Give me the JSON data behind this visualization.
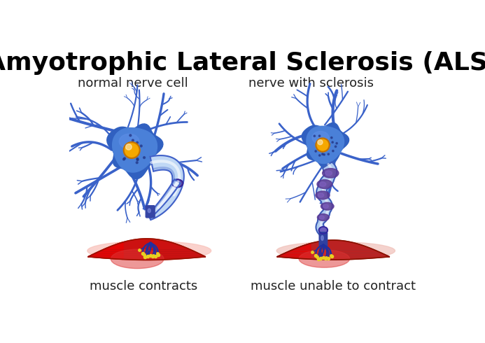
{
  "title": "Amyotrophic Lateral Sclerosis (ALS)",
  "title_fontsize": 26,
  "title_fontweight": "bold",
  "label_left_top": "normal nerve cell",
  "label_right_top": "nerve with sclerosis",
  "label_left_bottom": "muscle contracts",
  "label_right_bottom": "muscle unable to contract",
  "label_fontsize": 13,
  "label_color": "#222222",
  "bg_color": "#ffffff",
  "neuron_body_color": "#3a62c9",
  "neuron_body_outer": "#4a7de0",
  "nucleus_color_normal": "#f5a800",
  "nucleus_color_sclerosis": "#f0b030",
  "axon_blue_light": "#b8d0f0",
  "axon_blue_dark": "#3a5ab8",
  "axon_blue_mid": "#7aabdc",
  "sclerosis_purple": "#6040a0",
  "sclerosis_light": "#8878c8",
  "muscle_red_bright": "#dd1111",
  "muscle_red_dark": "#aa1111",
  "muscle_pink": "#f5c8c0",
  "muscle_stripe": "#cc3333",
  "nerve_terminal_blue": "#3050a0",
  "nerve_terminal_tip": "#f0e040"
}
